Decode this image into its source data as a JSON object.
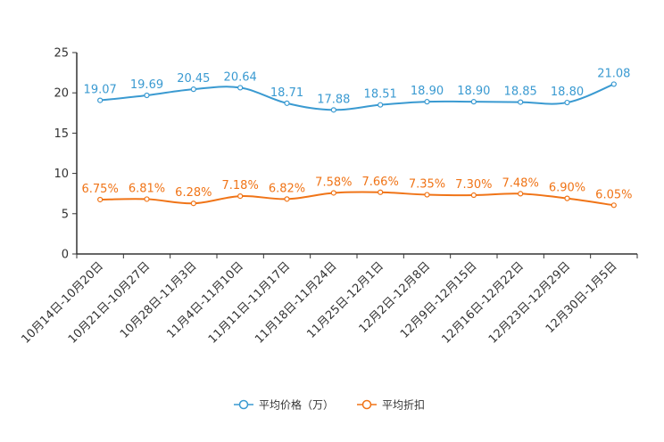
{
  "chart_data": {
    "type": "line",
    "title": "",
    "xlabel": "",
    "ylabel": "",
    "ylim": [
      0,
      25
    ],
    "yticks": [
      0,
      5,
      10,
      15,
      20,
      25
    ],
    "grid": false,
    "legend_position": "bottom-center",
    "categories": [
      "10月14日-10月20日",
      "10月21日-10月27日",
      "10月28日-11月3日",
      "11月4日-11月10日",
      "11月11日-11月17日",
      "11月18日-11月24日",
      "11月25日-12月1日",
      "12月2日-12月8日",
      "12月9日-12月15日",
      "12月16日-12月22日",
      "12月23日-12月29日",
      "12月30日-1月5日"
    ],
    "series": [
      {
        "name": "平均价格（万）",
        "color": "#3a9ad1",
        "values": [
          19.07,
          19.69,
          20.45,
          20.64,
          18.71,
          17.88,
          18.51,
          18.9,
          18.9,
          18.85,
          18.8,
          21.08
        ],
        "labels": [
          "19.07",
          "19.69",
          "20.45",
          "20.64",
          "18.71",
          "17.88",
          "18.51",
          "18.90",
          "18.90",
          "18.85",
          "18.80",
          "21.08"
        ]
      },
      {
        "name": "平均折扣",
        "color": "#f07417",
        "values": [
          6.75,
          6.81,
          6.28,
          7.18,
          6.82,
          7.58,
          7.66,
          7.35,
          7.3,
          7.48,
          6.9,
          6.05
        ],
        "labels": [
          "6.75%",
          "6.81%",
          "6.28%",
          "7.18%",
          "6.82%",
          "7.58%",
          "7.66%",
          "7.35%",
          "7.30%",
          "7.48%",
          "6.90%",
          "6.05%"
        ]
      }
    ]
  }
}
